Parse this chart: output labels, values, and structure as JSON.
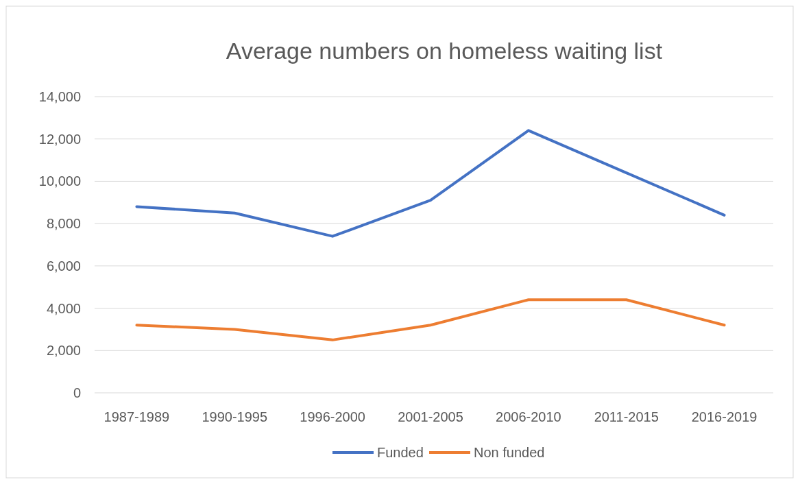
{
  "chart_data": {
    "type": "line",
    "title": "Average numbers on homeless waiting list",
    "categories": [
      "1987-1989",
      "1990-1995",
      "1996-2000",
      "2001-2005",
      "2006-2010",
      "2011-2015",
      "2016-2019"
    ],
    "series": [
      {
        "name": "Funded",
        "color": "#4472c4",
        "values": [
          8800,
          8500,
          7400,
          9100,
          12400,
          10400,
          8400
        ]
      },
      {
        "name": "Non funded",
        "color": "#ed7d31",
        "values": [
          3200,
          3000,
          2500,
          3200,
          4400,
          4400,
          3200
        ]
      }
    ],
    "ylim": [
      0,
      14000
    ],
    "yticks": [
      {
        "value": 0,
        "label": "0"
      },
      {
        "value": 2000,
        "label": "2,000"
      },
      {
        "value": 4000,
        "label": "4,000"
      },
      {
        "value": 6000,
        "label": "6,000"
      },
      {
        "value": 8000,
        "label": "8,000"
      },
      {
        "value": 10000,
        "label": "10,000"
      },
      {
        "value": 12000,
        "label": "12,000"
      },
      {
        "value": 14000,
        "label": "14,000"
      }
    ],
    "grid": "y",
    "legend": "bottom",
    "marker": "none",
    "line_style": "solid"
  }
}
